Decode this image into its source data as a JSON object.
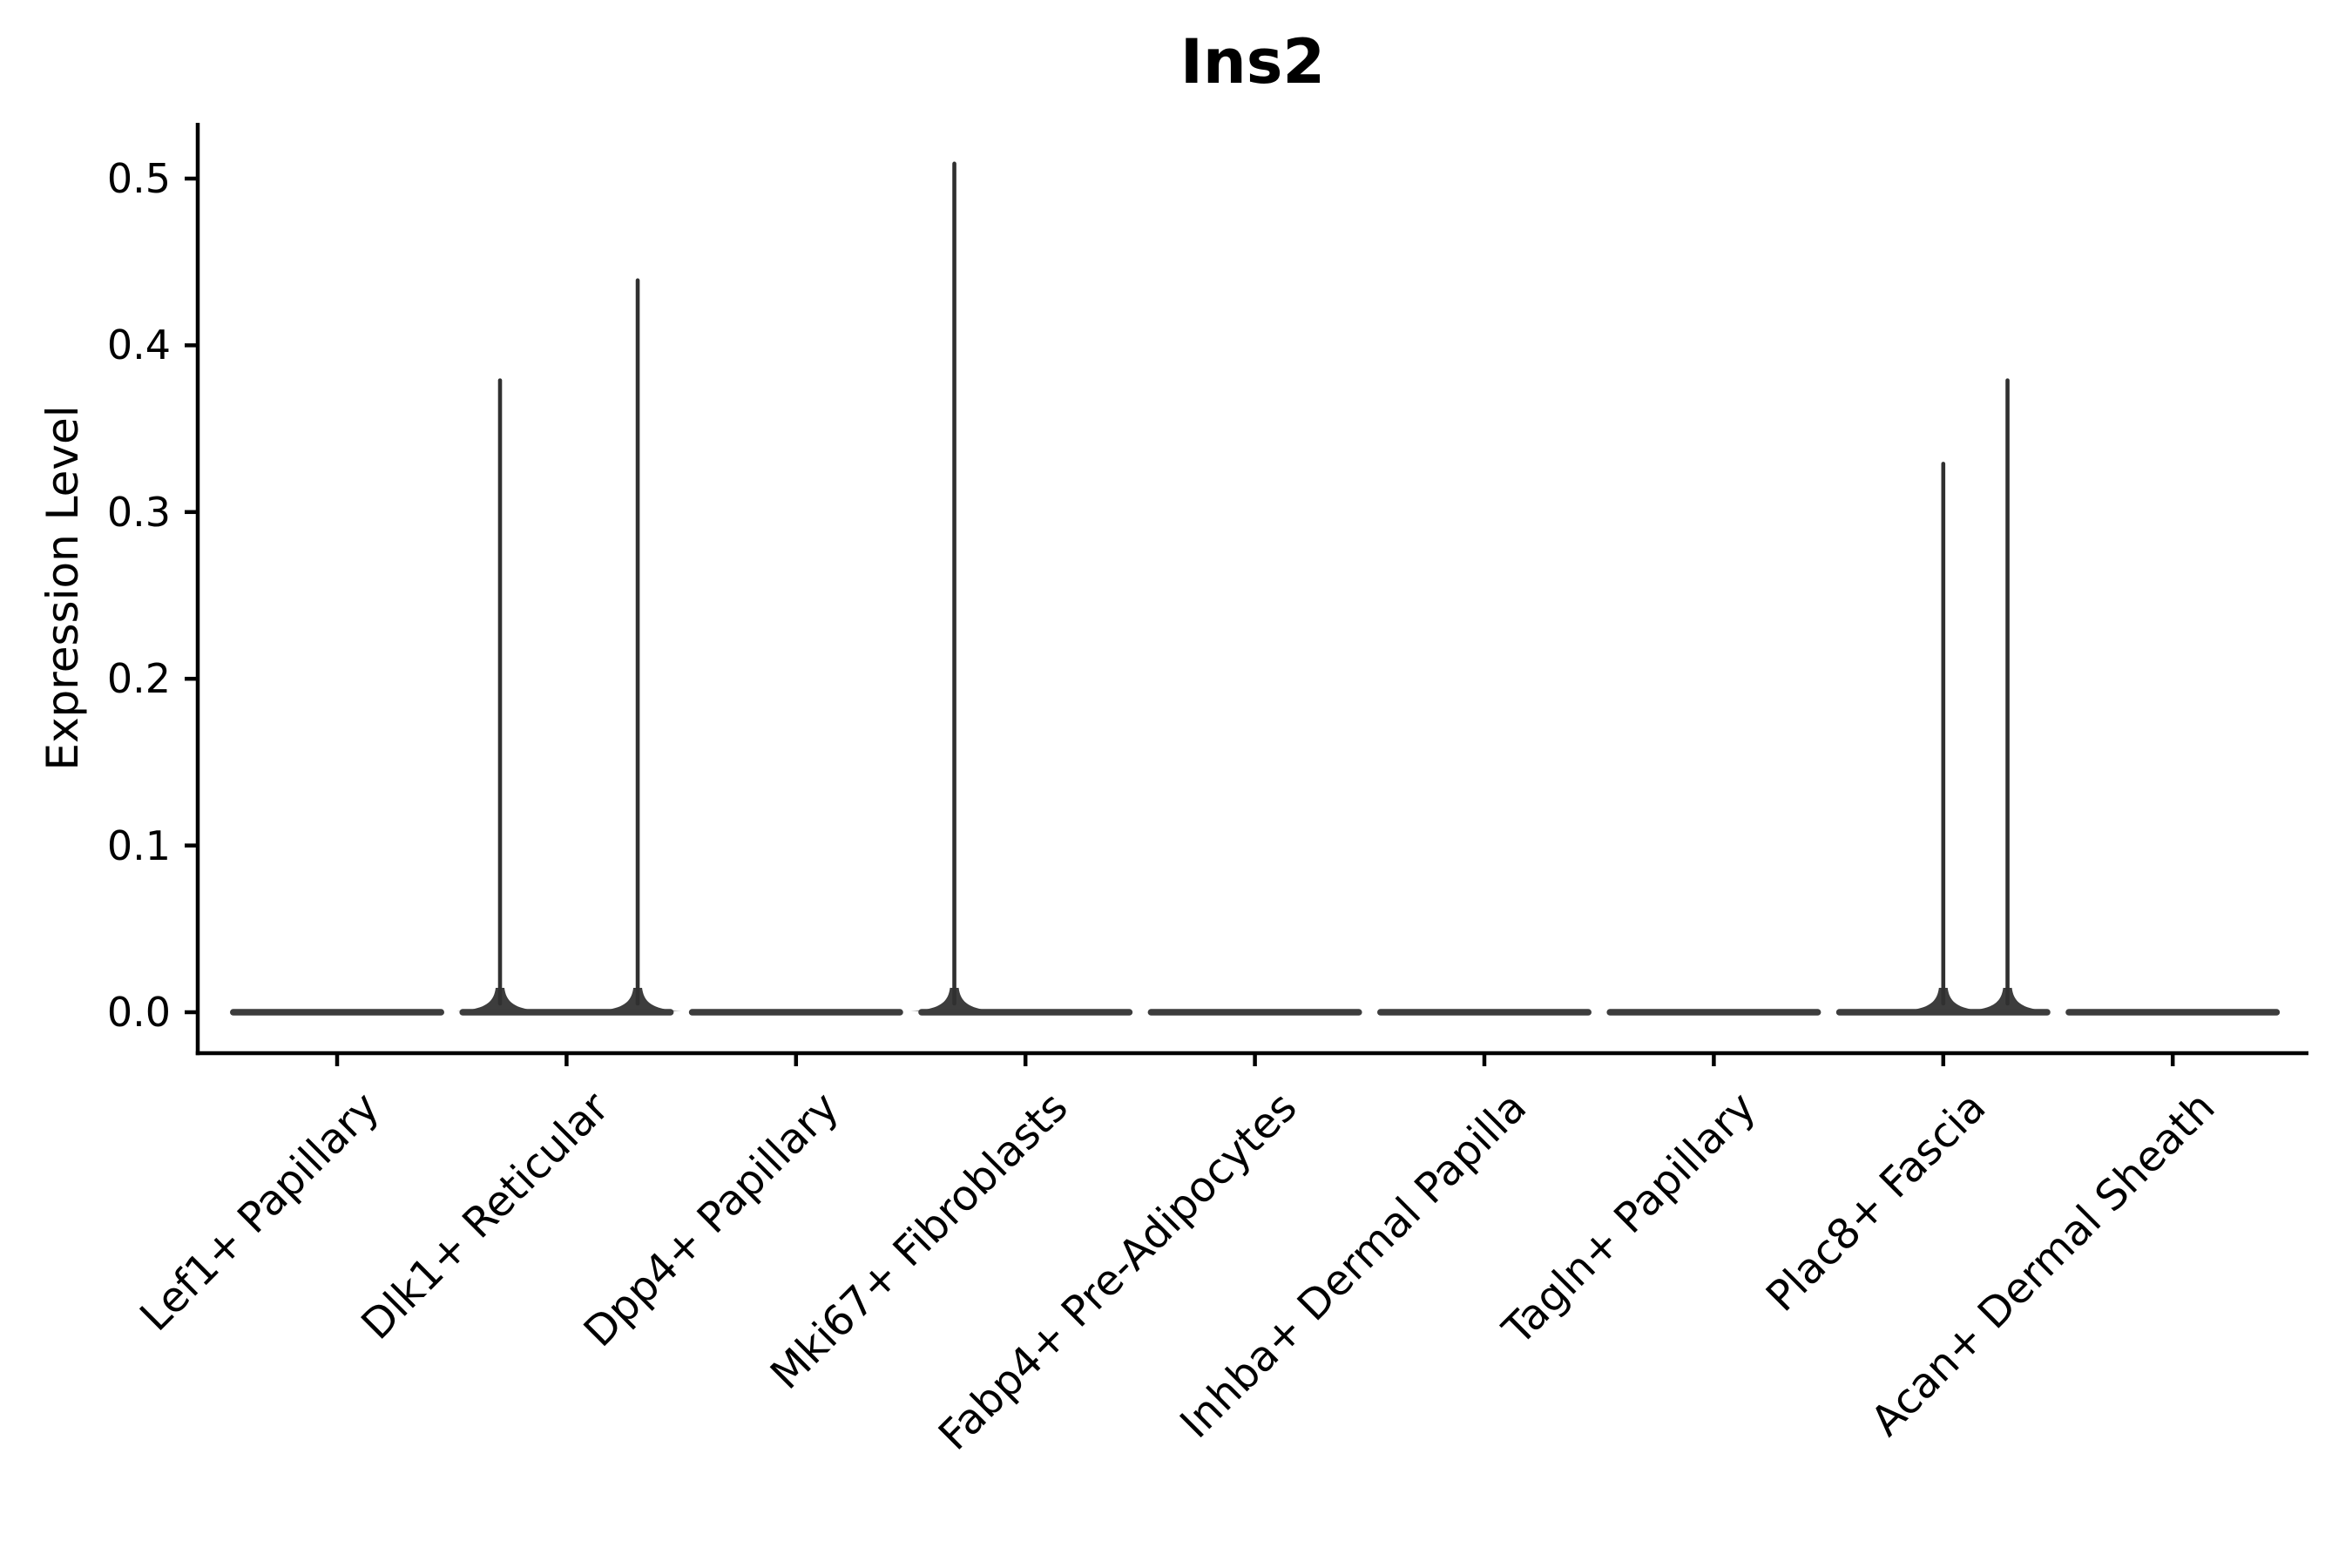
{
  "chart_data": {
    "type": "violin",
    "title": "Ins2",
    "ylabel": "Expression Level",
    "xlabel": "",
    "grid": false,
    "legend": null,
    "ylim": [
      -0.025,
      0.533
    ],
    "yticks": [
      "0.0",
      "0.1",
      "0.2",
      "0.3",
      "0.4",
      "0.5"
    ],
    "ytick_values": [
      0.0,
      0.1,
      0.2,
      0.3,
      0.4,
      0.5
    ],
    "categories": [
      "Lef1+ Papillary",
      "Dlk1+ Reticular",
      "Dpp4+ Papillary",
      "Mki67+ Fibroblasts",
      "Fabp4+ Pre-Adipocytes",
      "Inhba+ Dermal Papilla",
      "Tagln+ Papillary",
      "Plac8+ Fascia",
      "Acan+ Dermal Sheath"
    ],
    "violins": [
      {
        "category": "Lef1+ Papillary",
        "baseline": 0.0,
        "max": 0.0,
        "spikes": []
      },
      {
        "category": "Dlk1+ Reticular",
        "baseline": 0.0,
        "max": 0.44,
        "spikes": [
          {
            "offset": -0.29,
            "value": 0.38
          },
          {
            "offset": 0.31,
            "value": 0.44
          }
        ]
      },
      {
        "category": "Dpp4+ Papillary",
        "baseline": 0.0,
        "max": 0.0,
        "spikes": []
      },
      {
        "category": "Mki67+ Fibroblasts",
        "baseline": 0.0,
        "max": 0.51,
        "spikes": [
          {
            "offset": -0.31,
            "value": 0.51
          }
        ]
      },
      {
        "category": "Fabp4+ Pre-Adipocytes",
        "baseline": 0.0,
        "max": 0.0,
        "spikes": []
      },
      {
        "category": "Inhba+ Dermal Papilla",
        "baseline": 0.0,
        "max": 0.0,
        "spikes": []
      },
      {
        "category": "Tagln+ Papillary",
        "baseline": 0.0,
        "max": 0.0,
        "spikes": []
      },
      {
        "category": "Plac8+ Fascia",
        "baseline": 0.0,
        "max": 0.38,
        "spikes": [
          {
            "offset": 0.0,
            "value": 0.33
          },
          {
            "offset": 0.28,
            "value": 0.38
          }
        ]
      },
      {
        "category": "Acan+ Dermal Sheath",
        "baseline": 0.0,
        "max": 0.0,
        "spikes": []
      }
    ],
    "colors": {
      "background": "#ffffff",
      "axis": "#000000",
      "text": "#000000",
      "violin_line": "#303030",
      "violin_body": "#3d3d3d"
    }
  }
}
